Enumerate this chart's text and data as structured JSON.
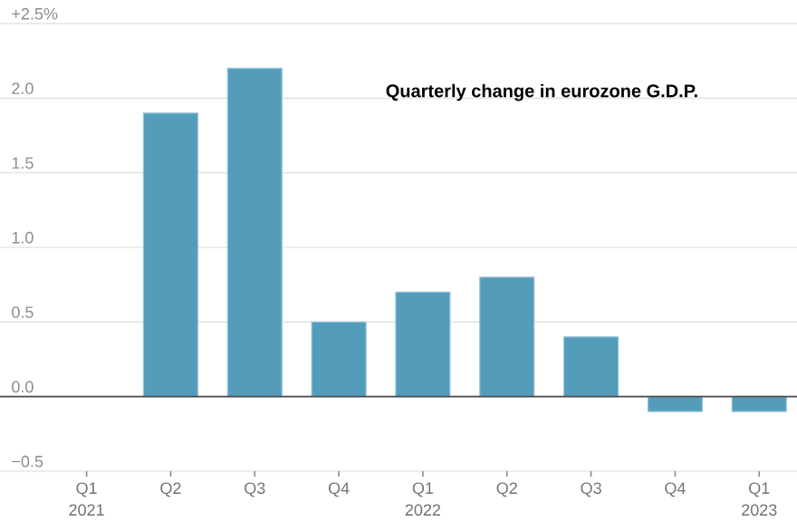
{
  "chart_data": {
    "type": "bar",
    "title": "Quarterly change in eurozone G.D.P.",
    "categories": [
      "Q1 2021",
      "Q2",
      "Q3",
      "Q4",
      "Q1 2022",
      "Q2",
      "Q3",
      "Q4",
      "Q1 2023"
    ],
    "values": [
      null,
      1.9,
      2.2,
      0.5,
      0.7,
      0.8,
      0.4,
      -0.1,
      -0.1
    ],
    "color": "#539dbb",
    "ylim": [
      -0.5,
      2.5
    ],
    "yticks": [
      {
        "value": -0.5,
        "label": "−0.5"
      },
      {
        "value": 0,
        "label": "0.0"
      },
      0.5,
      {
        "value": 1,
        "label": "1.0"
      },
      1.5,
      {
        "value": 2,
        "label": "2.0"
      },
      {
        "value": 2.5,
        "label": "+2.5%"
      }
    ],
    "grid": "y"
  }
}
